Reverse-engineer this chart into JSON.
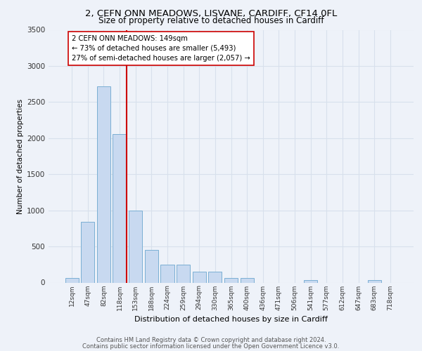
{
  "title_line1": "2, CEFN ONN MEADOWS, LISVANE, CARDIFF, CF14 0FL",
  "title_line2": "Size of property relative to detached houses in Cardiff",
  "xlabel": "Distribution of detached houses by size in Cardiff",
  "ylabel": "Number of detached properties",
  "categories": [
    "12sqm",
    "47sqm",
    "82sqm",
    "118sqm",
    "153sqm",
    "188sqm",
    "224sqm",
    "259sqm",
    "294sqm",
    "330sqm",
    "365sqm",
    "400sqm",
    "436sqm",
    "471sqm",
    "506sqm",
    "541sqm",
    "577sqm",
    "612sqm",
    "647sqm",
    "683sqm",
    "718sqm"
  ],
  "values": [
    60,
    840,
    2720,
    2060,
    1000,
    450,
    250,
    250,
    150,
    150,
    60,
    60,
    0,
    0,
    0,
    35,
    0,
    0,
    0,
    35,
    0
  ],
  "bar_color": "#c8d9f0",
  "bar_edge_color": "#7bafd4",
  "grid_color": "#d8e0ec",
  "annotation_box_text": "2 CEFN ONN MEADOWS: 149sqm\n← 73% of detached houses are smaller (5,493)\n27% of semi-detached houses are larger (2,057) →",
  "annotation_box_color": "#ffffff",
  "annotation_box_edge_color": "#cc0000",
  "vline_color": "#cc0000",
  "vline_x": 3.425,
  "ylim": [
    0,
    3500
  ],
  "yticks": [
    0,
    500,
    1000,
    1500,
    2000,
    2500,
    3000,
    3500
  ],
  "footer_line1": "Contains HM Land Registry data © Crown copyright and database right 2024.",
  "footer_line2": "Contains public sector information licensed under the Open Government Licence v3.0.",
  "bg_color": "#eef2f9"
}
